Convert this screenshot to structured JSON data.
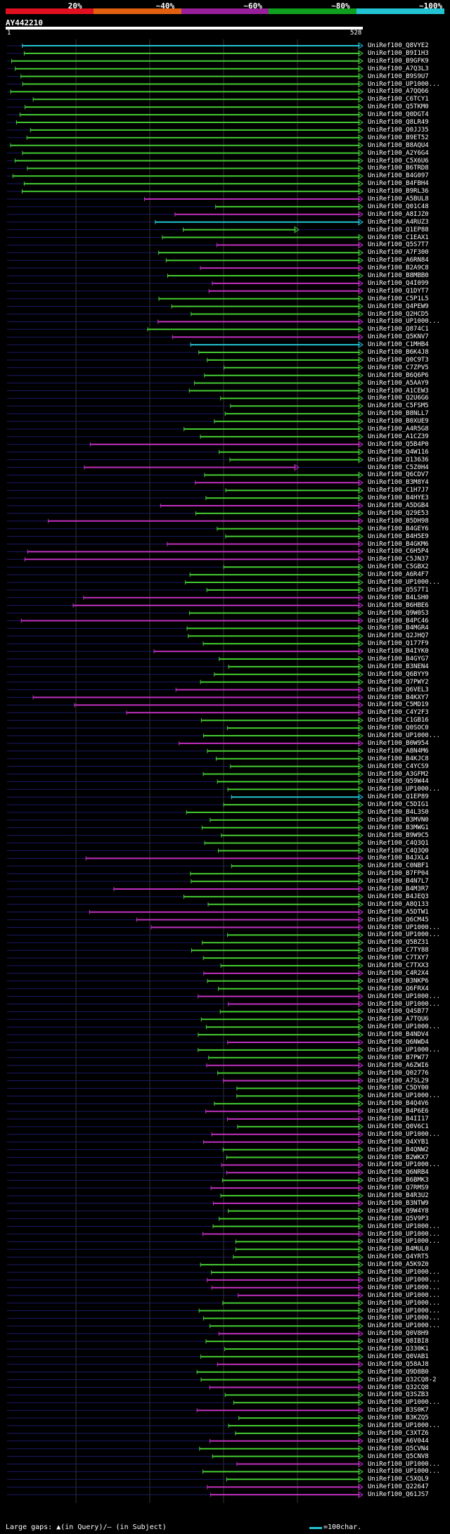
{
  "legend": {
    "labels": [
      "20%",
      "~40%",
      "~60%",
      "~80%",
      "~100%"
    ],
    "colors": [
      "#e01020",
      "#e06010",
      "#9a1f9a",
      "#10a020",
      "#22c4d4"
    ]
  },
  "query": {
    "id": "AY442210",
    "start": "1",
    "end": "528"
  },
  "colors": {
    "cyan": "#22c4d4",
    "green": "#44cc33",
    "magenta": "#c030c0",
    "grid": "#1a1a66"
  },
  "hits": [
    "UniRef100_Q8VYE2",
    "UniRef100_B9I1H3",
    "UniRef100_B9GFK9",
    "UniRef100_A7Q3L3",
    "UniRef100_B9S9U7",
    "UniRef100_UP1000...",
    "UniRef100_A7QQ66",
    "UniRef100_C6TCY1",
    "UniRef100_Q5TKM0",
    "UniRef100_Q0DGT4",
    "UniRef100_Q8LR49",
    "UniRef100_Q0JJ35",
    "UniRef100_B9ET52",
    "UniRef100_B8AQU4",
    "UniRef100_A2Y6G4",
    "UniRef100_C5X6U6",
    "UniRef100_B6TRD8",
    "UniRef100_B4G097",
    "UniRef100_B4FBH4",
    "UniRef100_B9RL36",
    "UniRef100_A5BUL8",
    "UniRef100_Q01C48",
    "UniRef100_A8IJZ0",
    "UniRef100_A4RUZ3",
    "UniRef100_Q1EP88",
    "UniRef100_C1EAX1",
    "UniRef100_Q5S7T7",
    "UniRef100_A7F300",
    "UniRef100_A6RN84",
    "UniRef100_B2A9C8",
    "UniRef100_B8MBB0",
    "UniRef100_Q4I099",
    "UniRef100_Q1DYT7",
    "UniRef100_C5P1L5",
    "UniRef100_Q4PEW9",
    "UniRef100_Q2HCD5",
    "UniRef100_UP1000...",
    "UniRef100_Q874C1",
    "UniRef100_Q5KNV7",
    "UniRef100_C1MHB4",
    "UniRef100_B6K4J8",
    "UniRef100_Q0C9T3",
    "UniRef100_C7ZPV5",
    "UniRef100_B6Q6P6",
    "UniRef100_A5AAY9",
    "UniRef100_A1CEW3",
    "UniRef100_Q2U6G6",
    "UniRef100_C5FSM5",
    "UniRef100_B8NLL7",
    "UniRef100_B0XUE9",
    "UniRef100_A4R5G8",
    "UniRef100_A1CZ39",
    "UniRef100_Q5B4P0",
    "UniRef100_Q4W116",
    "UniRef100_Q13636",
    "UniRef100_C5Z0H4",
    "UniRef100_Q6CDV7",
    "UniRef100_B3M8Y4",
    "UniRef100_C1H7J7",
    "UniRef100_B4HYE3",
    "UniRef100_A5DGB4",
    "UniRef100_Q29E53",
    "UniRef100_B5DH98",
    "UniRef100_B4GEY6",
    "UniRef100_B4H5E9",
    "UniRef100_B4GKM6",
    "UniRef100_C6H5P4",
    "UniRef100_C5JN37",
    "UniRef100_C5GBX2",
    "UniRef100_A6R4F7",
    "UniRef100_UP1000...",
    "UniRef100_Q5S7T1",
    "UniRef100_B4LSH0",
    "UniRef100_B6HBE6",
    "UniRef100_Q9W0S3",
    "UniRef100_B4PC46",
    "UniRef100_B4MGR4",
    "UniRef100_Q2JHQ7",
    "UniRef100_Q177F9",
    "UniRef100_B4IYK0",
    "UniRef100_B4GYG7",
    "UniRef100_B3NEN4",
    "UniRef100_Q6BYY9",
    "UniRef100_Q7PWY2",
    "UniRef100_Q6VEL3",
    "UniRef100_B4KXY7",
    "UniRef100_C5MD19",
    "UniRef100_C4Y2F3",
    "UniRef100_C1GB16",
    "UniRef100_Q0SOC0",
    "UniRef100_UP1000...",
    "UniRef100_B0W954",
    "UniRef100_A8N4M6",
    "UniRef100_B4KJC8",
    "UniRef100_C4YCS9",
    "UniRef100_A3GFM2",
    "UniRef100_Q59W44",
    "UniRef100_UP1000...",
    "UniRef100_Q1EP89",
    "UniRef100_C5DIG1",
    "UniRef100_B4L3S0",
    "UniRef100_B3MVN0",
    "UniRef100_B3MWG1",
    "UniRef100_B9W9C5",
    "UniRef100_C4Q3Q1",
    "UniRef100_C4Q3Q0",
    "UniRef100_B4JXL4",
    "UniRef100_C0NBF1",
    "UniRef100_B7FP04",
    "UniRef100_B4N7L7",
    "UniRef100_B4M3R7",
    "UniRef100_B4JEQ3",
    "UniRef100_A8Q133",
    "UniRef100_A5DTW1",
    "UniRef100_Q6CM45",
    "UniRef100_UP1000...",
    "UniRef100_UP1000...",
    "UniRef100_Q5BZ31",
    "UniRef100_C7TY88",
    "UniRef100_C7TXY7",
    "UniRef100_C7TXX3",
    "UniRef100_C4R2X4",
    "UniRef100_B3NKP6",
    "UniRef100_Q6FRX4",
    "UniRef100_UP1000...",
    "UniRef100_UP1000...",
    "UniRef100_Q4SB77",
    "UniRef100_A7TQU6",
    "UniRef100_UP1000...",
    "UniRef100_B4NDV4",
    "UniRef100_Q6NWD4",
    "UniRef100_UP1000...",
    "UniRef100_B7PW77",
    "UniRef100_A6ZWI6",
    "UniRef100_Q02776",
    "UniRef100_A7SL29",
    "UniRef100_C5DY00",
    "UniRef100_UP1000...",
    "UniRef100_B4Q4V6",
    "UniRef100_B4P6E6",
    "UniRef100_B4II17",
    "UniRef100_Q0V6C1",
    "UniRef100_UP1000...",
    "UniRef100_Q4XYB1",
    "UniRef100_B4QNW2",
    "UniRef100_B2WKX7",
    "UniRef100_UP1000...",
    "UniRef100_Q6NRB4",
    "UniRef100_B6BMK3",
    "UniRef100_Q7RMS9",
    "UniRef100_B4R3U2",
    "UniRef100_B3NTW9",
    "UniRef100_Q9W4Y8",
    "UniRef100_Q5V9P3",
    "UniRef100_UP1000...",
    "UniRef100_UP1000...",
    "UniRef100_UP1000...",
    "UniRef100_B4MUL0",
    "UniRef100_Q4YRT5",
    "UniRef100_A5K9Z0",
    "UniRef100_UP1000...",
    "UniRef100_UP1000...",
    "UniRef100_UP1000...",
    "UniRef100_UP1000...",
    "UniRef100_UP1000...",
    "UniRef100_UP1000...",
    "UniRef100_UP1000...",
    "UniRef100_UP1000...",
    "UniRef100_Q0V8H9",
    "UniRef100_Q8IBI8",
    "UniRef100_Q330K1",
    "UniRef100_Q0VAB1",
    "UniRef100_Q58AJ8",
    "UniRef100_Q9D8B0",
    "UniRef100_Q32CQ8-2",
    "UniRef100_Q32CQ8",
    "UniRef100_Q3SZB3",
    "UniRef100_UP1000...",
    "UniRef100_B3S0K7",
    "UniRef100_B3KZQ5",
    "UniRef100_UP1000...",
    "UniRef100_C3XTZ6",
    "UniRef100_A6V044",
    "UniRef100_Q5CVN4",
    "UniRef100_Q5CNV8",
    "UniRef100_UP1000...",
    "UniRef100_UP1000...",
    "UniRef100_C5XQL9",
    "UniRef100_Q22647",
    "UniRef100_Q61JS7"
  ],
  "footer": {
    "gaps_text": "Large gaps: ▲(in Query)/— (in Subject)",
    "scale_text": "=100char."
  }
}
